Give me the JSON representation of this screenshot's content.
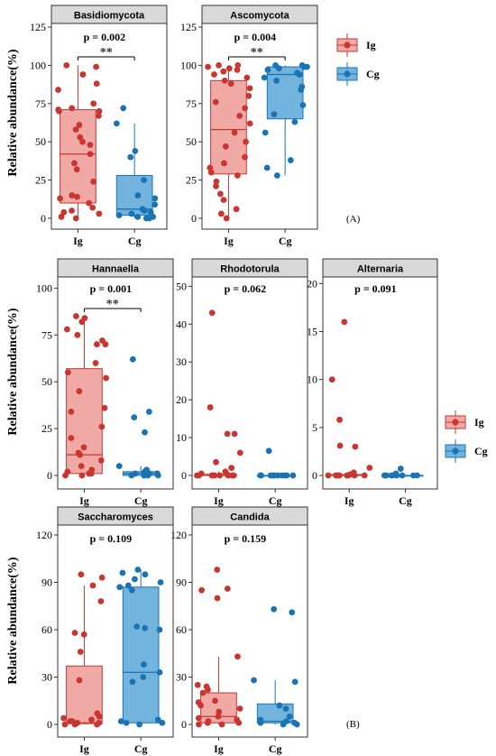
{
  "colors": {
    "Ig": "#c8362f",
    "Cg": "#1a74b3",
    "Ig_fill": "#ee9a97",
    "Cg_fill": "#59a7d8"
  },
  "panel_tags": [
    "(A)",
    "(B)"
  ],
  "y_axis_label": "Relative abundance(%)",
  "legend": {
    "entries": [
      "Ig",
      "Cg"
    ]
  },
  "chart_data": [
    {
      "type": "boxplot",
      "title": "Basidiomycota",
      "p_value": "p = 0.002",
      "significance": "**",
      "categories": [
        "Ig",
        "Cg"
      ],
      "ylabel": "Relative abundance(%)",
      "ylim": [
        0,
        125
      ],
      "yticks": [
        "0",
        "25",
        "50",
        "75",
        "100",
        "125"
      ],
      "boxes": [
        {
          "name": "Ig",
          "q1": 10,
          "median": 42,
          "q3": 71,
          "whisker_low": 0,
          "whisker_high": 100
        },
        {
          "name": "Cg",
          "q1": 2,
          "median": 6,
          "q3": 28,
          "whisker_low": 0,
          "whisker_high": 62
        }
      ],
      "points": {
        "Ig": [
          100,
          99,
          94,
          88,
          84,
          75,
          72,
          71,
          70,
          70,
          67,
          61,
          58,
          53,
          50,
          48,
          42,
          36,
          32,
          24,
          15,
          14,
          13,
          10,
          7,
          5,
          4,
          3,
          1,
          0
        ],
        "Cg": [
          72,
          62,
          44,
          40,
          25,
          15,
          13,
          9,
          6,
          5,
          4,
          3,
          2,
          1,
          1,
          0,
          0
        ]
      }
    },
    {
      "type": "boxplot",
      "title": "Ascomycota",
      "p_value": "p = 0.004",
      "significance": "**",
      "categories": [
        "Ig",
        "Cg"
      ],
      "ylabel": "",
      "ylim": [
        0,
        125
      ],
      "yticks": [
        "0",
        "25",
        "50",
        "75",
        "100",
        "125"
      ],
      "boxes": [
        {
          "name": "Ig",
          "q1": 29,
          "median": 58,
          "q3": 90,
          "whisker_low": 0,
          "whisker_high": 100
        },
        {
          "name": "Cg",
          "q1": 65,
          "median": 94,
          "q3": 99,
          "whisker_low": 28,
          "whisker_high": 100
        }
      ],
      "points": {
        "Ig": [
          100,
          100,
          99,
          98,
          97,
          96,
          94,
          92,
          90,
          88,
          85,
          80,
          76,
          72,
          67,
          62,
          56,
          50,
          47,
          40,
          36,
          33,
          30,
          28,
          24,
          21,
          16,
          12,
          6,
          3,
          0
        ],
        "Cg": [
          100,
          100,
          99,
          99,
          98,
          97,
          95,
          94,
          92,
          90,
          86,
          84,
          74,
          68,
          63,
          56,
          38,
          33,
          28
        ]
      }
    },
    {
      "type": "boxplot",
      "title": "Hannaella",
      "p_value": "p = 0.001",
      "significance": "**",
      "categories": [
        "Ig",
        "Cg"
      ],
      "ylabel": "Relative abundance(%)",
      "ylim": [
        0,
        105
      ],
      "yticks": [
        "0",
        "25",
        "50",
        "75",
        "100"
      ],
      "boxes": [
        {
          "name": "Ig",
          "q1": 1,
          "median": 11,
          "q3": 57,
          "whisker_low": 0,
          "whisker_high": 84
        },
        {
          "name": "Cg",
          "q1": 0,
          "median": 1,
          "q3": 2,
          "whisker_low": 0,
          "whisker_high": 5
        }
      ],
      "points": {
        "Ig": [
          85,
          84,
          82,
          78,
          75,
          72,
          70,
          70,
          60,
          55,
          52,
          45,
          36,
          34,
          26,
          20,
          15,
          12,
          11,
          8,
          5,
          3,
          2,
          1,
          1,
          0,
          0
        ],
        "Cg": [
          62,
          34,
          31,
          23,
          5,
          3,
          2,
          1,
          1,
          1,
          0,
          0,
          0,
          0
        ]
      }
    },
    {
      "type": "boxplot",
      "title": "Rhodotorula",
      "p_value": "p = 0.062",
      "significance": "",
      "categories": [
        "Ig",
        "Cg"
      ],
      "ylabel": "",
      "ylim": [
        0,
        52
      ],
      "yticks": [
        "0",
        "10",
        "20",
        "30",
        "40",
        "50"
      ],
      "boxes": [
        {
          "name": "Ig",
          "q1": 0,
          "median": 0,
          "q3": 0.3,
          "whisker_low": 0,
          "whisker_high": 1
        },
        {
          "name": "Cg",
          "q1": 0,
          "median": 0,
          "q3": 0,
          "whisker_low": 0,
          "whisker_high": 0
        }
      ],
      "points": {
        "Ig": [
          43,
          18,
          11,
          11,
          6,
          3.5,
          2,
          1,
          0.5,
          0.2,
          0,
          0,
          0,
          0,
          0,
          0,
          0,
          0,
          0
        ],
        "Cg": [
          6.5,
          0,
          0,
          0,
          0,
          0,
          0,
          0,
          0,
          0,
          0
        ]
      }
    },
    {
      "type": "boxplot",
      "title": "Alternaria",
      "p_value": "p = 0.091",
      "significance": "",
      "categories": [
        "Ig",
        "Cg"
      ],
      "ylabel": "",
      "ylim": [
        0,
        20.5
      ],
      "yticks": [
        "0",
        "5",
        "10",
        "15",
        "20"
      ],
      "boxes": [
        {
          "name": "Ig",
          "q1": 0,
          "median": 0,
          "q3": 0.1,
          "whisker_low": 0,
          "whisker_high": 0.2
        },
        {
          "name": "Cg",
          "q1": 0,
          "median": 0,
          "q3": 0,
          "whisker_low": 0,
          "whisker_high": 0
        }
      ],
      "points": {
        "Ig": [
          16,
          10,
          5.8,
          3.1,
          3,
          0.8,
          0.3,
          0.1,
          0,
          0,
          0,
          0,
          0,
          0,
          0,
          0,
          0
        ],
        "Cg": [
          0.7,
          0.2,
          0,
          0,
          0,
          0,
          0,
          0,
          0,
          0
        ]
      }
    },
    {
      "type": "boxplot",
      "title": "Saccharomyces",
      "p_value": "p = 0.109",
      "significance": "",
      "categories": [
        "Ig",
        "Cg"
      ],
      "ylabel": "Relative abundance(%)",
      "ylim": [
        0,
        124
      ],
      "yticks": [
        "0",
        "30",
        "60",
        "90",
        "120"
      ],
      "boxes": [
        {
          "name": "Ig",
          "q1": 0.5,
          "median": 1,
          "q3": 37,
          "whisker_low": 0,
          "whisker_high": 88
        },
        {
          "name": "Cg",
          "q1": 1,
          "median": 33,
          "q3": 87,
          "whisker_low": 0,
          "whisker_high": 98
        }
      ],
      "points": {
        "Ig": [
          95,
          93,
          88,
          78,
          58,
          57,
          46,
          28,
          7,
          5,
          4,
          3,
          2,
          2,
          1,
          1,
          0,
          0,
          0
        ],
        "Cg": [
          98,
          96,
          95,
          92,
          90,
          88,
          87,
          85,
          62,
          61,
          60,
          38,
          33,
          30,
          27,
          3,
          2,
          1,
          1,
          0
        ]
      }
    },
    {
      "type": "boxplot",
      "title": "Candida",
      "p_value": "p = 0.159",
      "significance": "",
      "categories": [
        "Ig",
        "Cg"
      ],
      "ylabel": "",
      "ylim": [
        0,
        124
      ],
      "yticks": [
        "0",
        "30",
        "60",
        "90",
        "120"
      ],
      "boxes": [
        {
          "name": "Ig",
          "q1": 1,
          "median": 5,
          "q3": 20,
          "whisker_low": 0,
          "whisker_high": 43
        },
        {
          "name": "Cg",
          "q1": 1,
          "median": 2,
          "q3": 13,
          "whisker_low": 0,
          "whisker_high": 28
        }
      ],
      "points": {
        "Ig": [
          98,
          86,
          85,
          80,
          43,
          25,
          24,
          22,
          20,
          15,
          14,
          12,
          10,
          8,
          5,
          4,
          3,
          2,
          1,
          1,
          0,
          0
        ],
        "Cg": [
          73,
          71,
          28,
          27,
          12,
          10,
          5,
          3,
          2,
          1,
          1,
          0,
          0
        ]
      }
    }
  ]
}
